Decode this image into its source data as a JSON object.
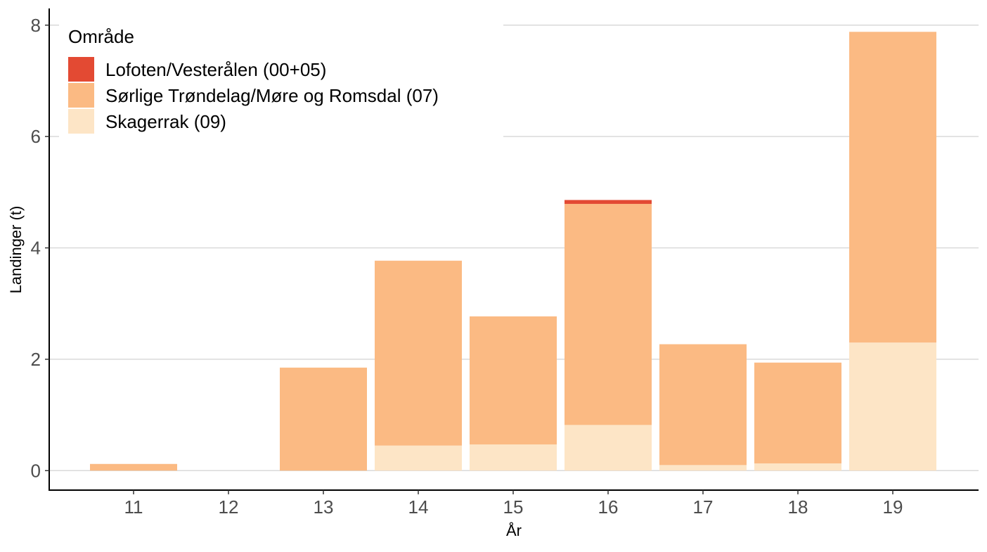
{
  "chart_data": {
    "type": "bar",
    "stacked": true,
    "title": "",
    "xlabel": "År",
    "ylabel": "Landinger (t)",
    "categories": [
      "11",
      "12",
      "13",
      "14",
      "15",
      "16",
      "17",
      "18",
      "19"
    ],
    "yticks": [
      0,
      2,
      4,
      6,
      8
    ],
    "ylim": [
      -0.35,
      8.3
    ],
    "grid": "horizontal",
    "legend_title": "Område",
    "legend_position": "top-left",
    "series": [
      {
        "name": "Skagerrak (09)",
        "color": "#FDE5C6",
        "values": [
          0,
          0,
          0,
          0.45,
          0.47,
          0.82,
          0.1,
          0.13,
          2.3
        ]
      },
      {
        "name": "Sørlige Trøndelag/Møre og Romsdal (07)",
        "color": "#FBBA83",
        "values": [
          0.12,
          0,
          1.85,
          3.32,
          2.3,
          3.97,
          2.17,
          1.81,
          5.58
        ]
      },
      {
        "name": "Lofoten/Vesterålen (00+05)",
        "color": "#E34A33",
        "values": [
          0,
          0,
          0,
          0,
          0,
          0.07,
          0,
          0,
          0
        ]
      }
    ],
    "legend_order": [
      "Lofoten/Vesterålen (00+05)",
      "Sørlige Trøndelag/Møre og Romsdal (07)",
      "Skagerrak (09)"
    ]
  }
}
